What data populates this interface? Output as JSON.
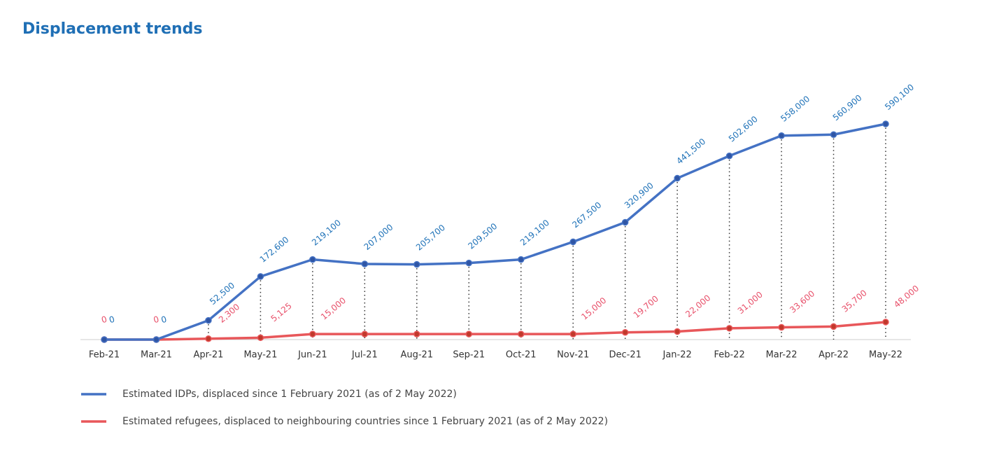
{
  "chart_data": {
    "type": "line",
    "title": "Displacement trends",
    "categories": [
      "Feb-21",
      "Mar-21",
      "Apr-21",
      "May-21",
      "Jun-21",
      "Jul-21",
      "Aug-21",
      "Sep-21",
      "Oct-21",
      "Nov-21",
      "Dec-21",
      "Jan-22",
      "Feb-22",
      "Mar-22",
      "Apr-22",
      "May-22"
    ],
    "series": [
      {
        "name": "Estimated IDPs, displaced since 1 February 2021 (as of 2 May 2022)",
        "color": "#4472c4",
        "values": [
          0,
          0,
          52500,
          172600,
          219100,
          207000,
          205700,
          209500,
          219100,
          267500,
          320900,
          441500,
          502600,
          558000,
          560900,
          590100
        ],
        "value_labels": [
          "0",
          "0",
          "52,500",
          "172,600",
          "219,100",
          "207,000",
          "205,700",
          "209,500",
          "219,100",
          "267,500",
          "320,900",
          "441,500",
          "502,600",
          "558,000",
          "560,900",
          "590,100"
        ]
      },
      {
        "name": "Estimated refugees, displaced to neighbouring countries since 1 February 2021 (as of 2 May 2022)",
        "color": "#e8575a",
        "values": [
          0,
          0,
          2300,
          5125,
          15000,
          15000,
          15000,
          15000,
          15000,
          15000,
          19700,
          22000,
          31000,
          33600,
          35700,
          48000
        ],
        "value_labels": [
          "0",
          "0",
          "2,300",
          "5,125",
          "15,000",
          null,
          null,
          null,
          null,
          "15,000",
          "19,700",
          "22,000",
          "31,000",
          "33,600",
          "35,700",
          "48,000"
        ]
      }
    ]
  }
}
